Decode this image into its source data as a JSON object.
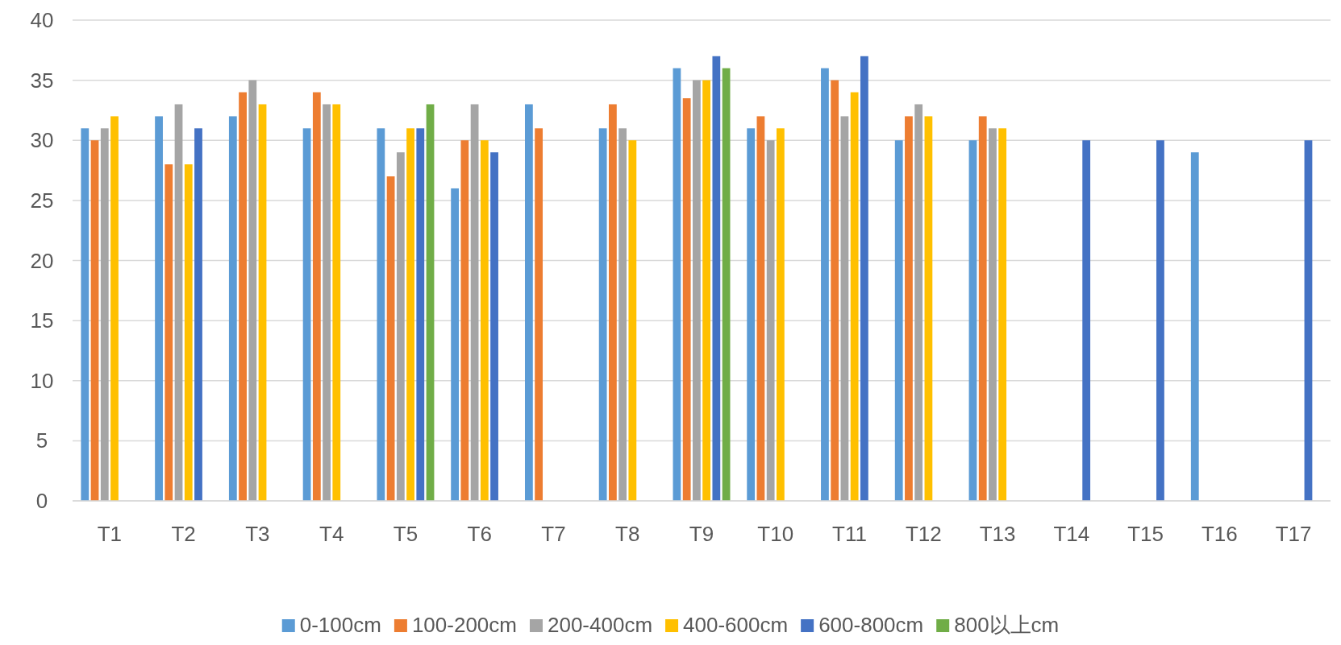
{
  "chart_data": {
    "type": "bar",
    "categories": [
      "T1",
      "T2",
      "T3",
      "T4",
      "T5",
      "T6",
      "T7",
      "T8",
      "T9",
      "T10",
      "T11",
      "T12",
      "T13",
      "T14",
      "T15",
      "T16",
      "T17"
    ],
    "series": [
      {
        "name": "0-100cm",
        "color": "#5b9bd5",
        "values": [
          31,
          32,
          32,
          31,
          31,
          26,
          33,
          31,
          36,
          31,
          36,
          30,
          30,
          null,
          null,
          29,
          null
        ]
      },
      {
        "name": "100-200cm",
        "color": "#ed7d31",
        "values": [
          30,
          28,
          34,
          34,
          27,
          30,
          31,
          33,
          33.5,
          32,
          35,
          32,
          32,
          null,
          null,
          null,
          null
        ]
      },
      {
        "name": "200-400cm",
        "color": "#a5a5a5",
        "values": [
          31,
          33,
          35,
          33,
          29,
          33,
          null,
          31,
          35,
          30,
          32,
          33,
          31,
          null,
          null,
          null,
          null
        ]
      },
      {
        "name": "400-600cm",
        "color": "#ffc000",
        "values": [
          32,
          28,
          33,
          33,
          31,
          30,
          null,
          30,
          35,
          31,
          34,
          32,
          31,
          null,
          null,
          null,
          null
        ]
      },
      {
        "name": "600-800cm",
        "color": "#4472c4",
        "values": [
          null,
          31,
          null,
          null,
          31,
          29,
          null,
          null,
          37,
          null,
          37,
          null,
          null,
          30,
          30,
          null,
          30
        ]
      },
      {
        "name": "800以上cm",
        "color": "#70ad47",
        "values": [
          null,
          null,
          null,
          null,
          33,
          null,
          null,
          null,
          36,
          null,
          null,
          null,
          null,
          null,
          null,
          null,
          null
        ]
      }
    ],
    "ylim": [
      0,
      40
    ],
    "yticks": [
      0,
      5,
      10,
      15,
      20,
      25,
      30,
      35,
      40
    ],
    "grid": "y",
    "legend": "bottom"
  }
}
